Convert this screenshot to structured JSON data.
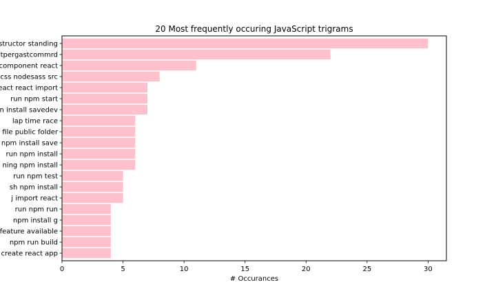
{
  "chart_data": {
    "type": "bar",
    "orientation": "horizontal",
    "title": "20 Most frequently occuring JavaScript trigrams",
    "xlabel": "# Occurances",
    "ylabel": "",
    "xlim": [
      0,
      31.5
    ],
    "xticks": [
      0,
      5,
      10,
      15,
      20,
      25,
      30
    ],
    "grid": false,
    "legend": "none",
    "bar_color": "#ffc0cb",
    "categories": [
      "structor standing",
      "tpergastcommrd",
      "component react",
      "css nodesass src",
      "eact react import",
      "run npm start",
      "n install savedev",
      "lap time race",
      "file public folder",
      "npm install save",
      "run npm install",
      "ning npm install",
      "run npm test",
      "sh npm install",
      "j import react",
      "run npm run",
      "npm install g",
      "feature available",
      "npm run build",
      "create react app"
    ],
    "values": [
      30,
      22,
      11,
      8,
      7,
      7,
      7,
      6,
      6,
      6,
      6,
      6,
      5,
      5,
      5,
      4,
      4,
      4,
      4,
      4
    ]
  }
}
